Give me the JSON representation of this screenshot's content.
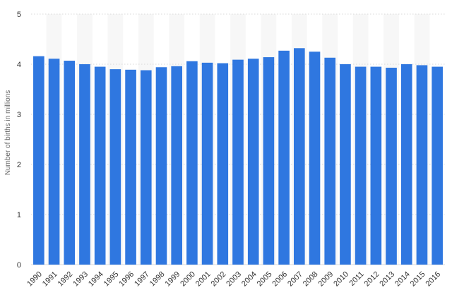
{
  "chart_data": {
    "type": "bar",
    "title": "",
    "xlabel": "",
    "ylabel": "Number of births in millions",
    "categories": [
      "1990",
      "1991",
      "1992",
      "1993",
      "1994",
      "1995",
      "1996",
      "1997",
      "1998",
      "1999",
      "2000",
      "2001",
      "2002",
      "2003",
      "2004",
      "2005",
      "2006",
      "2007",
      "2008",
      "2009",
      "2010",
      "2011",
      "2012",
      "2013",
      "2014",
      "2015",
      "2016"
    ],
    "values": [
      4.16,
      4.11,
      4.07,
      4.0,
      3.95,
      3.9,
      3.89,
      3.88,
      3.94,
      3.96,
      4.06,
      4.03,
      4.02,
      4.09,
      4.11,
      4.14,
      4.27,
      4.32,
      4.25,
      4.13,
      4.0,
      3.95,
      3.95,
      3.93,
      4.0,
      3.98,
      3.95
    ],
    "ylim": [
      0,
      5
    ],
    "yticks": [
      0,
      1,
      2,
      3,
      4,
      5
    ],
    "grid": true,
    "legend": "none",
    "colors": {
      "bar": "#2f77e0",
      "band": "#f7f7f7",
      "grid": "#d8d8d8"
    }
  }
}
